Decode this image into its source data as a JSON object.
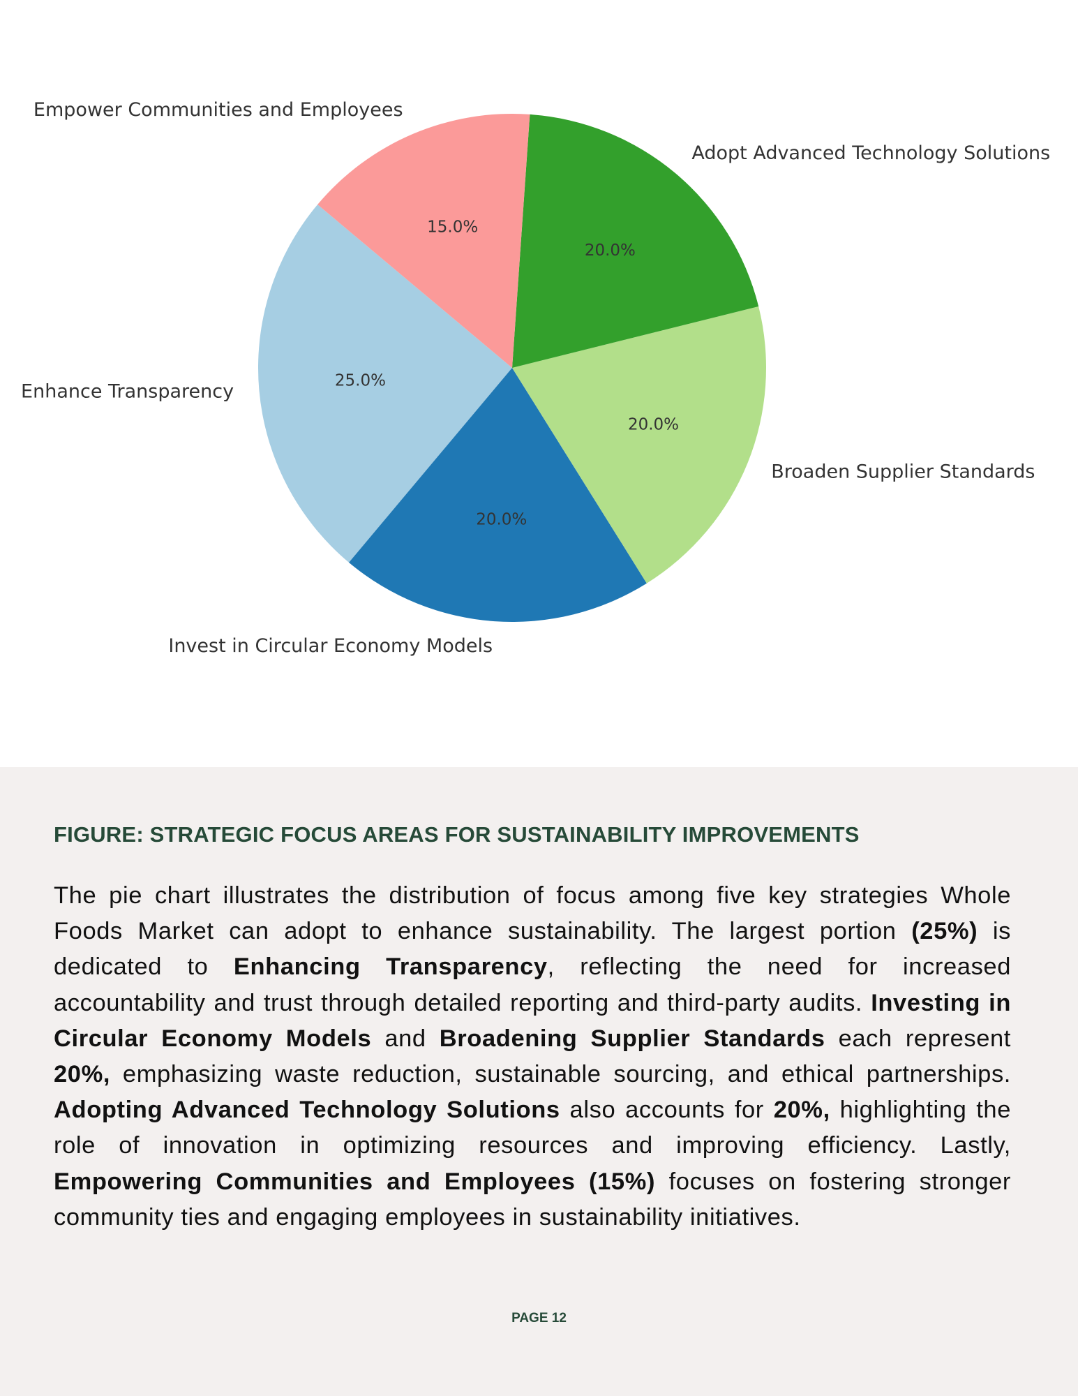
{
  "chart_data": {
    "type": "pie",
    "title": "",
    "start_angle_deg": 140,
    "direction": "counterclockwise",
    "categories": [
      "Enhance Transparency",
      "Invest in Circular Economy Models",
      "Broaden Supplier Standards",
      "Adopt Advanced Technology Solutions",
      "Empower Communities and Employees"
    ],
    "values": [
      25,
      20,
      20,
      20,
      15
    ],
    "pct_labels": [
      "25.0%",
      "20.0%",
      "20.0%",
      "20.0%",
      "15.0%"
    ],
    "colors": [
      "#a6cee3",
      "#1f78b4",
      "#b2df8a",
      "#33a02c",
      "#fb9a99"
    ]
  },
  "caption": {
    "title": "FIGURE: STRATEGIC FOCUS AREAS FOR SUSTAINABILITY IMPROVEMENTS",
    "body": [
      {
        "t": "The pie chart illustrates the distribution of focus among five key strategies Whole Foods Market can adopt to enhance sustainability. The largest portion ",
        "b": false
      },
      {
        "t": "(25%)",
        "b": true
      },
      {
        "t": " is dedicated to ",
        "b": false
      },
      {
        "t": "Enhancing Transparency",
        "b": true
      },
      {
        "t": ", reflecting the need for increased accountability and trust through detailed reporting and third-party audits. ",
        "b": false
      },
      {
        "t": "Investing in Circular Economy Models",
        "b": true
      },
      {
        "t": " and ",
        "b": false
      },
      {
        "t": "Broadening Supplier Standards",
        "b": true
      },
      {
        "t": " each represent ",
        "b": false
      },
      {
        "t": "20%,",
        "b": true
      },
      {
        "t": " emphasizing waste reduction, sustainable sourcing, and ethical partnerships. ",
        "b": false
      },
      {
        "t": "Adopting Advanced Technology Solutions",
        "b": true
      },
      {
        "t": " also accounts for ",
        "b": false
      },
      {
        "t": "20%,",
        "b": true
      },
      {
        "t": " highlighting the role of innovation in optimizing resources and improving efficiency. Lastly, ",
        "b": false
      },
      {
        "t": "Empowering Communities and Employees (15%)",
        "b": true
      },
      {
        "t": " focuses on fostering stronger community ties and engaging employees in sustainability initiatives.",
        "b": false
      }
    ],
    "page_label": "PAGE 12"
  }
}
